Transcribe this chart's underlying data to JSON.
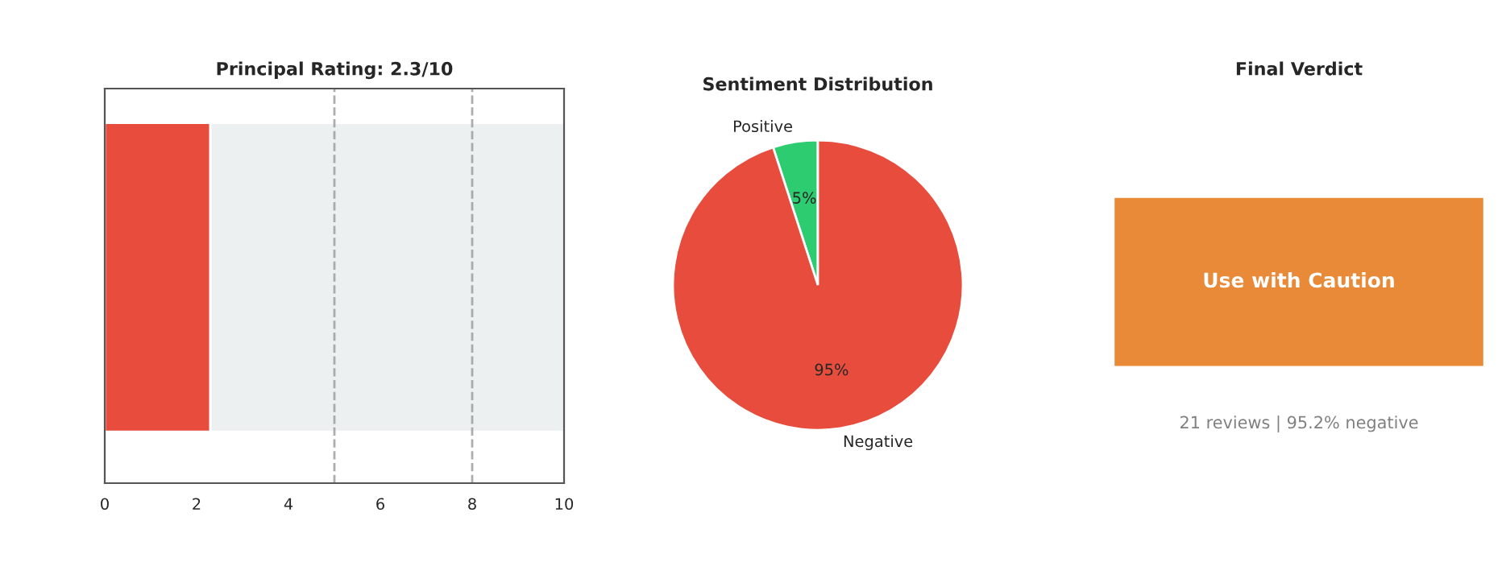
{
  "chart_data": [
    {
      "type": "bar",
      "title": "Principal Rating: 2.3/10",
      "orientation": "horizontal",
      "stacked": true,
      "categories": [
        null
      ],
      "series": [
        {
          "color": "#e74c3c",
          "values": [
            2.3
          ]
        },
        {
          "color": "#ecf0f1",
          "values": [
            7.7
          ]
        }
      ],
      "xlim": [
        0,
        10
      ],
      "xticks": [
        0,
        2,
        4,
        6,
        8,
        10
      ],
      "tick_labels": "x",
      "ref_lines": [
        {
          "axis": "x",
          "value": 5,
          "color": "#999999",
          "line_style": "dashed"
        },
        {
          "axis": "x",
          "value": 8,
          "color": "#999999",
          "line_style": "dashed"
        }
      ]
    },
    {
      "type": "pie",
      "title": "Sentiment Distribution",
      "categories": [
        "Positive",
        "Negative"
      ],
      "values": [
        5,
        95
      ],
      "colors": [
        "#2ecc71",
        "#e74c3c"
      ],
      "value_labels": [
        "5%",
        "95%"
      ]
    },
    {
      "type": "other",
      "title": "Final Verdict",
      "color": "#e67e22",
      "annotations": [
        "Use with Caution",
        "21 reviews | 95.2% negative"
      ]
    }
  ]
}
